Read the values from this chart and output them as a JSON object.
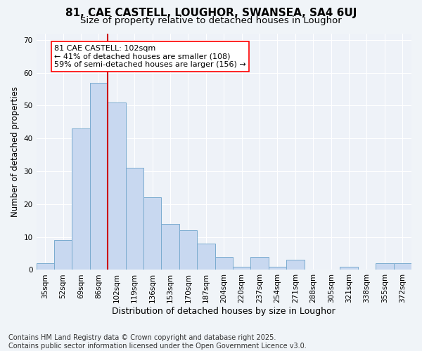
{
  "title1": "81, CAE CASTELL, LOUGHOR, SWANSEA, SA4 6UJ",
  "title2": "Size of property relative to detached houses in Loughor",
  "xlabel": "Distribution of detached houses by size in Loughor",
  "ylabel": "Number of detached properties",
  "categories": [
    "35sqm",
    "52sqm",
    "69sqm",
    "86sqm",
    "102sqm",
    "119sqm",
    "136sqm",
    "153sqm",
    "170sqm",
    "187sqm",
    "204sqm",
    "220sqm",
    "237sqm",
    "254sqm",
    "271sqm",
    "288sqm",
    "305sqm",
    "321sqm",
    "338sqm",
    "355sqm",
    "372sqm"
  ],
  "values": [
    2,
    9,
    43,
    57,
    51,
    31,
    22,
    14,
    12,
    8,
    4,
    1,
    4,
    1,
    3,
    0,
    0,
    1,
    0,
    2,
    2
  ],
  "bar_color": "#c8d8f0",
  "bar_edge_color": "#7aabcf",
  "vline_index": 4,
  "vline_color": "#cc0000",
  "annotation_text": "81 CAE CASTELL: 102sqm\n← 41% of detached houses are smaller (108)\n59% of semi-detached houses are larger (156) →",
  "ylim": [
    0,
    72
  ],
  "yticks": [
    0,
    10,
    20,
    30,
    40,
    50,
    60,
    70
  ],
  "background_color": "#f0f4f8",
  "axes_background": "#eef2f8",
  "grid_color": "#ffffff",
  "footer": "Contains HM Land Registry data © Crown copyright and database right 2025.\nContains public sector information licensed under the Open Government Licence v3.0.",
  "title_fontsize": 11,
  "subtitle_fontsize": 9.5,
  "xlabel_fontsize": 9,
  "ylabel_fontsize": 8.5,
  "tick_fontsize": 7.5,
  "footer_fontsize": 7,
  "ann_fontsize": 8
}
